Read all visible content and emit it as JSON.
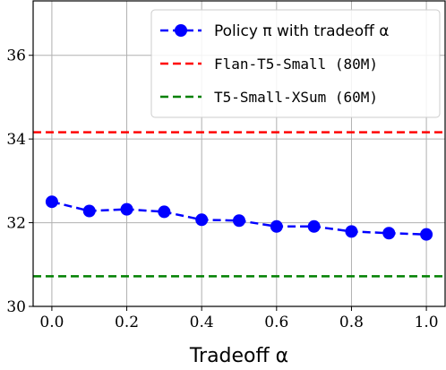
{
  "chart_data": {
    "type": "line",
    "title": "",
    "xlabel": "Tradeoff α",
    "ylabel": "",
    "xlim": [
      -0.05,
      1.05
    ],
    "ylim": [
      30,
      37.3
    ],
    "xticks": [
      0.0,
      0.2,
      0.4,
      0.6,
      0.8,
      1.0
    ],
    "xtick_labels": [
      "0.0",
      "0.2",
      "0.4",
      "0.6",
      "0.8",
      "1.0"
    ],
    "yticks": [
      30,
      32,
      34,
      36
    ],
    "ytick_labels": [
      "30",
      "32",
      "34",
      "36"
    ],
    "grid": true,
    "legend_position": "top-right",
    "series": [
      {
        "name": "Policy π with tradeoff α",
        "kind": "line-markers",
        "color": "#0000ff",
        "x": [
          0.0,
          0.1,
          0.2,
          0.3,
          0.4,
          0.5,
          0.6,
          0.7,
          0.8,
          0.9,
          1.0
        ],
        "y": [
          32.5,
          32.28,
          32.32,
          32.26,
          32.07,
          32.05,
          31.91,
          31.91,
          31.79,
          31.75,
          31.72
        ]
      },
      {
        "name": "Flan-T5-Small (80M)",
        "kind": "hline",
        "color": "#ff0000",
        "y": 34.16
      },
      {
        "name": "T5-Small-XSum (60M)",
        "kind": "hline",
        "color": "#008000",
        "y": 30.72
      }
    ]
  }
}
